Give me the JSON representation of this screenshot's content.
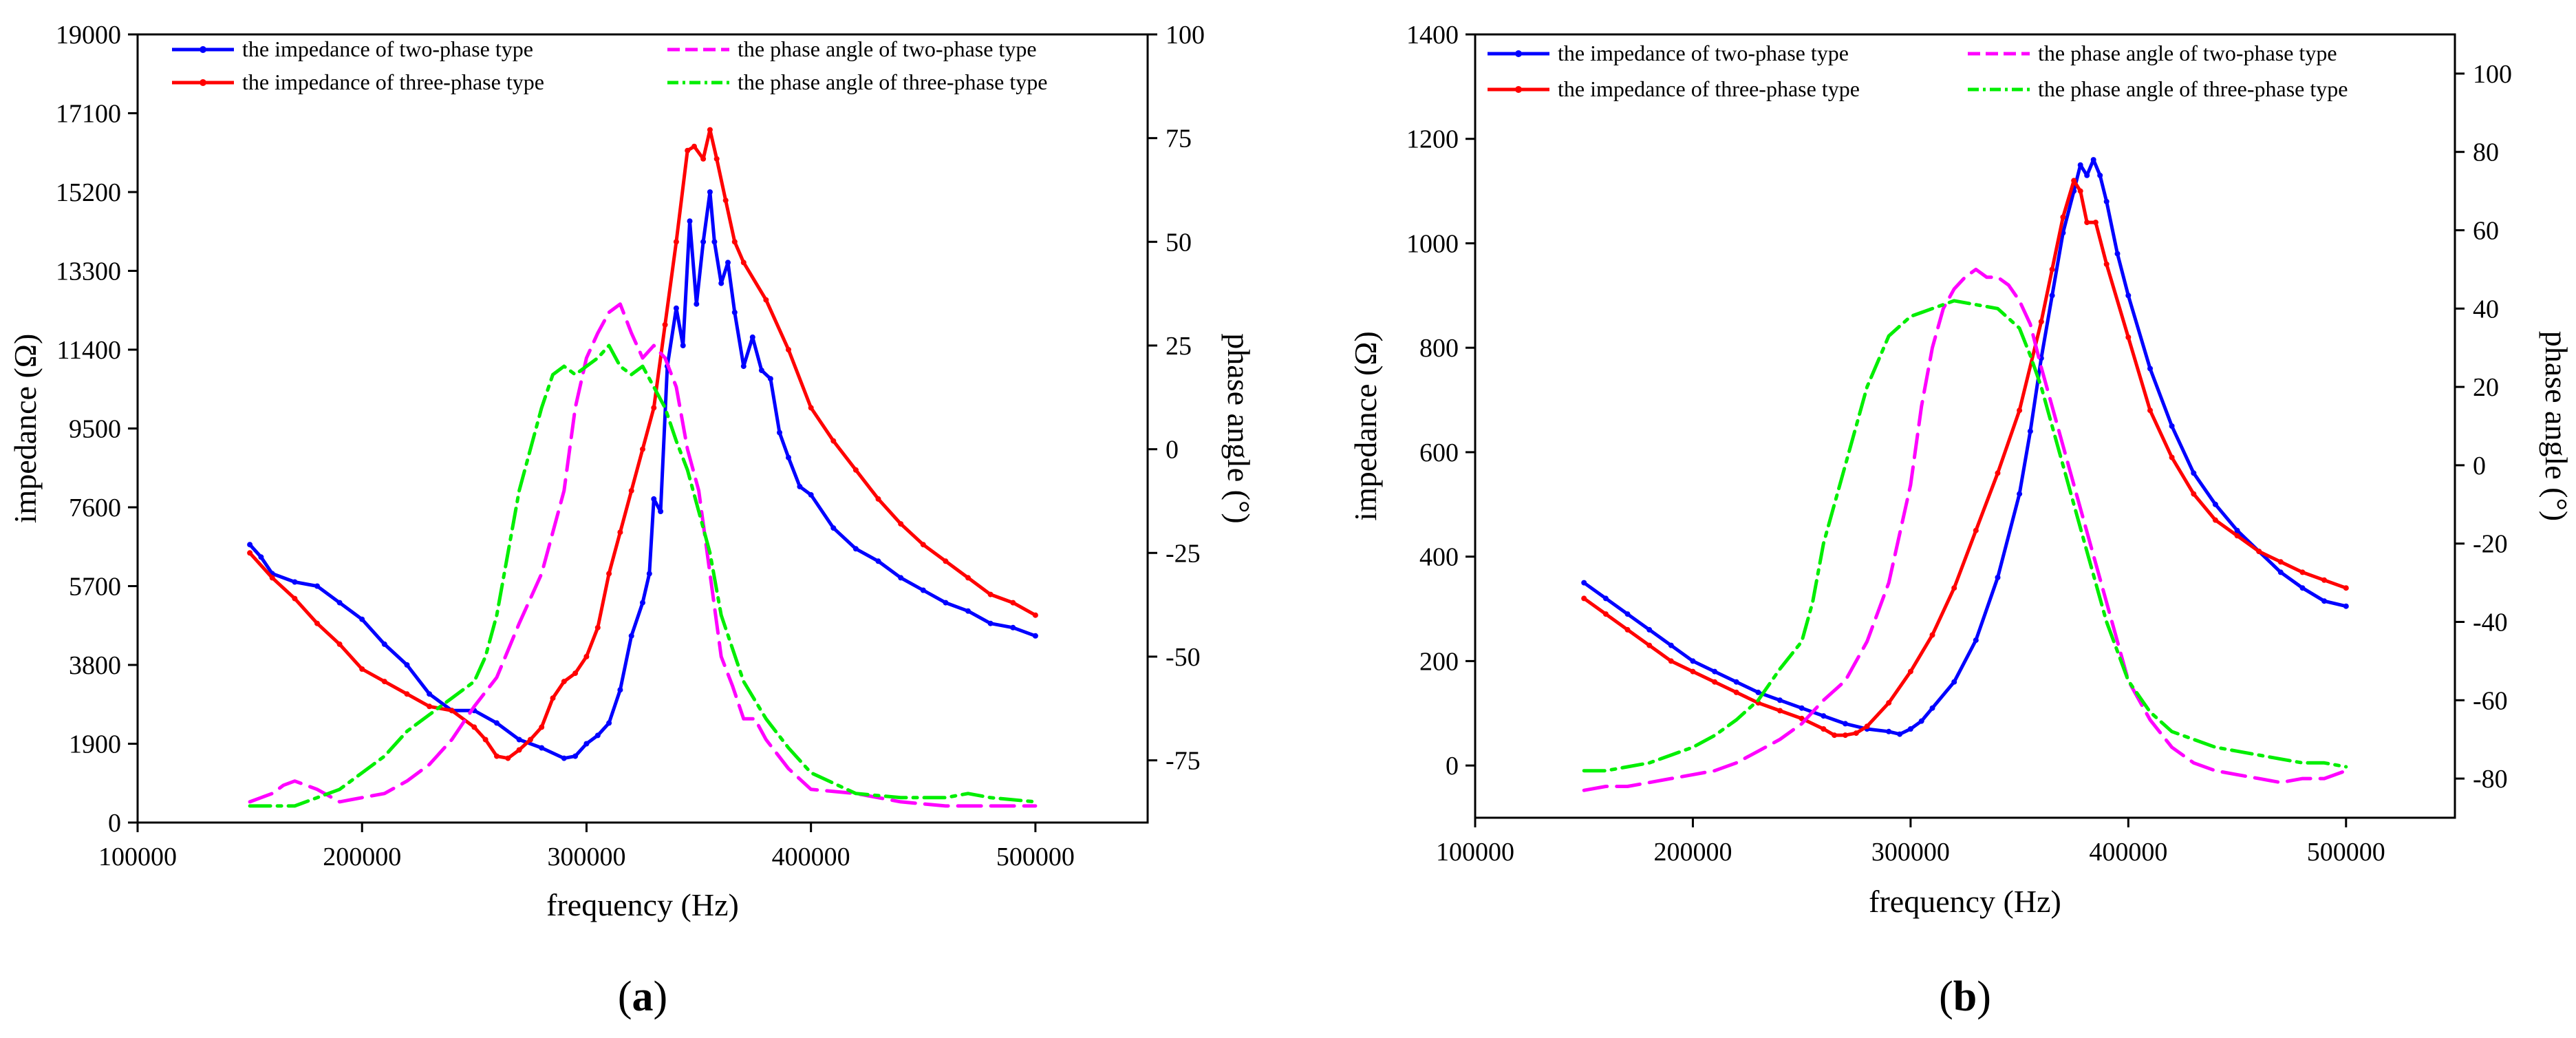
{
  "chart_data": [
    {
      "type": "line",
      "caption_open": "(",
      "caption_letter": "a",
      "caption_close": ")",
      "xlabel": "frequency (Hz)",
      "ylabel": "impedance (Ω)",
      "y2label": "phase angle (°)",
      "xlim": [
        100000,
        550000
      ],
      "ylim": [
        0,
        19000
      ],
      "y2lim": [
        -90,
        100
      ],
      "xticks": [
        100000,
        200000,
        300000,
        400000,
        500000
      ],
      "yticks": [
        0,
        1900,
        3800,
        5700,
        7600,
        9500,
        11400,
        13300,
        15200,
        17100,
        19000
      ],
      "y2ticks": [
        -75,
        -50,
        -25,
        0,
        25,
        50,
        75,
        100
      ],
      "legend": [
        "the impedance of two-phase type",
        "the impedance of three-phase type",
        "the phase angle of two-phase  type",
        "the phase angle of three-phase type"
      ],
      "series": [
        {
          "name": "the impedance of two-phase type",
          "axis": "left",
          "color": "#0000ff",
          "style": "solid-marker",
          "x": [
            150000,
            155000,
            160000,
            170000,
            180000,
            190000,
            200000,
            210000,
            220000,
            230000,
            240000,
            250000,
            260000,
            270000,
            280000,
            290000,
            295000,
            300000,
            305000,
            310000,
            315000,
            320000,
            325000,
            328000,
            330000,
            333000,
            336000,
            340000,
            343000,
            346000,
            349000,
            352000,
            355000,
            357000,
            360000,
            363000,
            366000,
            370000,
            374000,
            378000,
            382000,
            386000,
            390000,
            395000,
            400000,
            410000,
            420000,
            430000,
            440000,
            450000,
            460000,
            470000,
            480000,
            490000,
            500000
          ],
          "y": [
            6700,
            6400,
            6000,
            5800,
            5700,
            5300,
            4900,
            4300,
            3800,
            3100,
            2700,
            2700,
            2400,
            2000,
            1800,
            1550,
            1600,
            1900,
            2100,
            2400,
            3200,
            4500,
            5300,
            6000,
            7800,
            7500,
            11000,
            12400,
            11500,
            14500,
            12500,
            14000,
            15200,
            14000,
            13000,
            13500,
            12300,
            11000,
            11700,
            10900,
            10700,
            9400,
            8800,
            8100,
            7900,
            7100,
            6600,
            6300,
            5900,
            5600,
            5300,
            5100,
            4800,
            4700,
            4500
          ]
        },
        {
          "name": "the impedance of three-phase type",
          "axis": "left",
          "color": "#ff0000",
          "style": "solid-marker",
          "x": [
            150000,
            160000,
            170000,
            180000,
            190000,
            200000,
            210000,
            220000,
            230000,
            240000,
            250000,
            255000,
            260000,
            265000,
            270000,
            275000,
            280000,
            285000,
            290000,
            295000,
            300000,
            305000,
            310000,
            315000,
            320000,
            325000,
            330000,
            335000,
            340000,
            345000,
            348000,
            352000,
            355000,
            358000,
            362000,
            366000,
            370000,
            380000,
            390000,
            400000,
            410000,
            420000,
            430000,
            440000,
            450000,
            460000,
            470000,
            480000,
            490000,
            500000
          ],
          "y": [
            6500,
            5900,
            5400,
            4800,
            4300,
            3700,
            3400,
            3100,
            2800,
            2700,
            2300,
            2000,
            1600,
            1550,
            1750,
            2000,
            2300,
            3000,
            3400,
            3600,
            4000,
            4700,
            6000,
            7000,
            8000,
            9000,
            10000,
            12000,
            14000,
            16200,
            16300,
            16000,
            16700,
            16000,
            15000,
            14000,
            13500,
            12600,
            11400,
            10000,
            9200,
            8500,
            7800,
            7200,
            6700,
            6300,
            5900,
            5500,
            5300,
            5000
          ]
        },
        {
          "name": "the phase angle of two-phase  type",
          "axis": "right",
          "color": "#ff00ff",
          "style": "dashed",
          "x": [
            150000,
            155000,
            160000,
            165000,
            170000,
            180000,
            190000,
            200000,
            210000,
            220000,
            230000,
            240000,
            250000,
            260000,
            270000,
            280000,
            285000,
            290000,
            295000,
            300000,
            305000,
            310000,
            315000,
            320000,
            325000,
            330000,
            335000,
            340000,
            345000,
            350000,
            355000,
            360000,
            365000,
            370000,
            375000,
            380000,
            390000,
            400000,
            420000,
            440000,
            460000,
            480000,
            500000
          ],
          "y": [
            -85,
            -84,
            -83,
            -81,
            -80,
            -82,
            -85,
            -84,
            -83,
            -80,
            -76,
            -70,
            -62,
            -55,
            -42,
            -30,
            -20,
            -10,
            10,
            22,
            28,
            33,
            35,
            28,
            22,
            25,
            22,
            15,
            0,
            -10,
            -30,
            -50,
            -57,
            -65,
            -65,
            -70,
            -77,
            -82,
            -83,
            -85,
            -86,
            -86,
            -86
          ]
        },
        {
          "name": "the phase angle of three-phase type",
          "axis": "right",
          "color": "#00ee00",
          "style": "dash-dot",
          "x": [
            150000,
            160000,
            170000,
            180000,
            190000,
            200000,
            210000,
            220000,
            230000,
            240000,
            250000,
            255000,
            260000,
            265000,
            270000,
            275000,
            280000,
            285000,
            290000,
            295000,
            300000,
            305000,
            310000,
            315000,
            320000,
            325000,
            330000,
            335000,
            340000,
            345000,
            350000,
            355000,
            360000,
            370000,
            380000,
            390000,
            400000,
            420000,
            440000,
            460000,
            470000,
            480000,
            500000
          ],
          "y": [
            -86,
            -86,
            -86,
            -84,
            -82,
            -78,
            -74,
            -68,
            -64,
            -60,
            -56,
            -50,
            -40,
            -25,
            -10,
            0,
            10,
            18,
            20,
            18,
            20,
            22,
            25,
            20,
            18,
            20,
            15,
            10,
            2,
            -5,
            -15,
            -25,
            -40,
            -56,
            -65,
            -72,
            -78,
            -83,
            -84,
            -84,
            -83,
            -84,
            -85
          ]
        }
      ]
    },
    {
      "type": "line",
      "caption_open": "(",
      "caption_letter": "b",
      "caption_close": ")",
      "xlabel": "frequency (Hz)",
      "ylabel": "impedance (Ω)",
      "y2label": "phase angle (°)",
      "xlim": [
        100000,
        550000
      ],
      "ylim": [
        -100,
        1400
      ],
      "y2lim": [
        -90,
        110
      ],
      "xticks": [
        100000,
        200000,
        300000,
        400000,
        500000
      ],
      "yticks": [
        0,
        200,
        400,
        600,
        800,
        1000,
        1200,
        1400
      ],
      "y2ticks": [
        -80,
        -60,
        -40,
        -20,
        0,
        20,
        40,
        60,
        80,
        100
      ],
      "legend": [
        "the impedance of two-phase type",
        "the impedance of three-phase type",
        "the phase angle of two-phase type",
        "the phase angle of three-phase type"
      ],
      "series": [
        {
          "name": "the impedance of two-phase type",
          "axis": "left",
          "color": "#0000ff",
          "style": "solid-marker",
          "x": [
            150000,
            160000,
            170000,
            180000,
            190000,
            200000,
            210000,
            220000,
            230000,
            240000,
            250000,
            260000,
            270000,
            280000,
            290000,
            295000,
            300000,
            305000,
            310000,
            320000,
            330000,
            340000,
            350000,
            355000,
            360000,
            365000,
            370000,
            375000,
            378000,
            381000,
            384000,
            387000,
            390000,
            395000,
            400000,
            410000,
            420000,
            430000,
            440000,
            450000,
            460000,
            470000,
            480000,
            490000,
            500000
          ],
          "y": [
            350,
            320,
            290,
            260,
            230,
            200,
            180,
            160,
            140,
            125,
            110,
            95,
            80,
            70,
            65,
            60,
            70,
            85,
            110,
            160,
            240,
            360,
            520,
            640,
            780,
            900,
            1020,
            1100,
            1150,
            1130,
            1160,
            1130,
            1080,
            980,
            900,
            760,
            650,
            560,
            500,
            450,
            410,
            370,
            340,
            315,
            305
          ]
        },
        {
          "name": "the impedance of three-phase type",
          "axis": "left",
          "color": "#ff0000",
          "style": "solid-marker",
          "x": [
            150000,
            160000,
            170000,
            180000,
            190000,
            200000,
            210000,
            220000,
            230000,
            240000,
            250000,
            260000,
            265000,
            270000,
            275000,
            280000,
            290000,
            300000,
            310000,
            320000,
            330000,
            340000,
            350000,
            360000,
            365000,
            370000,
            375000,
            378000,
            381000,
            385000,
            390000,
            400000,
            410000,
            420000,
            430000,
            440000,
            450000,
            460000,
            470000,
            480000,
            490000,
            500000
          ],
          "y": [
            320,
            290,
            260,
            230,
            200,
            180,
            160,
            140,
            120,
            105,
            90,
            70,
            58,
            58,
            62,
            75,
            120,
            180,
            250,
            340,
            450,
            560,
            680,
            850,
            950,
            1050,
            1120,
            1100,
            1040,
            1040,
            960,
            820,
            680,
            590,
            520,
            470,
            440,
            410,
            390,
            370,
            355,
            340
          ]
        },
        {
          "name": "the phase angle of two-phase type",
          "axis": "right",
          "color": "#ff00ff",
          "style": "dashed",
          "x": [
            150000,
            160000,
            170000,
            180000,
            190000,
            200000,
            210000,
            220000,
            230000,
            240000,
            250000,
            260000,
            270000,
            280000,
            290000,
            300000,
            305000,
            310000,
            315000,
            320000,
            325000,
            330000,
            335000,
            340000,
            345000,
            350000,
            355000,
            360000,
            365000,
            370000,
            380000,
            390000,
            400000,
            410000,
            420000,
            430000,
            440000,
            450000,
            460000,
            470000,
            480000,
            490000,
            500000
          ],
          "y": [
            -83,
            -82,
            -82,
            -81,
            -80,
            -79,
            -78,
            -76,
            -73,
            -70,
            -66,
            -60,
            -55,
            -45,
            -30,
            -5,
            15,
            30,
            40,
            45,
            48,
            50,
            48,
            48,
            46,
            42,
            36,
            25,
            15,
            5,
            -15,
            -35,
            -55,
            -65,
            -72,
            -76,
            -78,
            -79,
            -80,
            -81,
            -80,
            -80,
            -78
          ]
        },
        {
          "name": "the phase angle of three-phase type",
          "axis": "right",
          "color": "#00ee00",
          "style": "dash-dot",
          "x": [
            150000,
            160000,
            170000,
            180000,
            190000,
            200000,
            210000,
            220000,
            230000,
            240000,
            250000,
            255000,
            260000,
            265000,
            270000,
            275000,
            280000,
            290000,
            300000,
            310000,
            320000,
            330000,
            340000,
            350000,
            355000,
            360000,
            365000,
            370000,
            380000,
            390000,
            400000,
            410000,
            420000,
            430000,
            440000,
            450000,
            460000,
            470000,
            480000,
            490000,
            500000
          ],
          "y": [
            -78,
            -78,
            -77,
            -76,
            -74,
            -72,
            -69,
            -65,
            -60,
            -52,
            -45,
            -35,
            -20,
            -10,
            0,
            10,
            20,
            33,
            38,
            40,
            42,
            41,
            40,
            35,
            28,
            20,
            10,
            0,
            -20,
            -40,
            -55,
            -63,
            -68,
            -70,
            -72,
            -73,
            -74,
            -75,
            -76,
            -76,
            -77
          ]
        }
      ]
    }
  ]
}
